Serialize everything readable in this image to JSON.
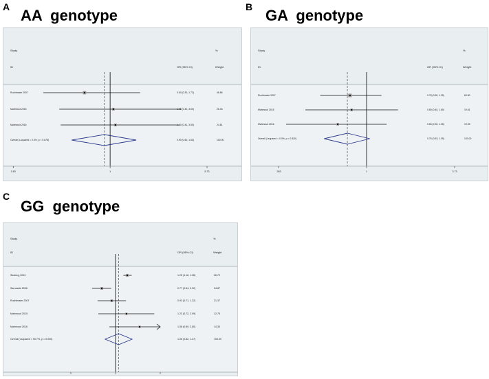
{
  "panels": [
    {
      "letter": "A",
      "title": "AA  genotype",
      "header": {
        "study": "Study",
        "id": "ID",
        "or": "OR (95% CI)",
        "pct": "%",
        "weight": "Weight"
      },
      "x_ticks": [
        "0.83",
        "1",
        "5.73"
      ]
    },
    {
      "letter": "B",
      "title": "GA  genotype",
      "header": {
        "study": "Study",
        "id": "ID",
        "or": "OR (95% CI)",
        "pct": "%",
        "weight": "Weight"
      },
      "x_ticks": [
        ".283",
        "1",
        "3.73"
      ]
    },
    {
      "letter": "C",
      "title": "GG  genotype",
      "header": {
        "study": "Study",
        "id": "ID",
        "or": "OR (95% CI)",
        "pct": "%",
        "weight": "Weight"
      },
      "x_ticks": [
        ".384",
        "1",
        "2.34"
      ],
      "note": "NOTE: Weights are from random effects analysis"
    }
  ],
  "chart_data": [
    {
      "type": "forest",
      "title": "AA  genotype",
      "xlim": [
        0.174,
        5.73
      ],
      "x_scale": "log",
      "null_line": 1,
      "pooled_line": 0.9,
      "studies": [
        {
          "label": "Ruchtmaier 2007",
          "or": 0.63,
          "lo": 0.3,
          "hi": 1.72,
          "ci_text": "0.63 (0.30, 1.72)",
          "weight": "48.86"
        },
        {
          "label": "Mahmoud 2015",
          "or": 1.06,
          "lo": 0.4,
          "hi": 3.6,
          "ci_text": "1.06 (0.40, 3.60)",
          "weight": "26.33"
        },
        {
          "label": "Mahmoud 2016",
          "or": 1.1,
          "lo": 0.41,
          "hi": 3.5,
          "ci_text": "1.10 (0.41, 3.50)",
          "weight": "24.81"
        }
      ],
      "overall": {
        "label": "Overall  (I-squared = 0.0%, p = 0.878)",
        "or": 0.9,
        "lo": 0.5,
        "hi": 1.6,
        "ci_text": "0.90 (0.50, 1.60)",
        "weight": "100.00"
      }
    },
    {
      "type": "forest",
      "title": "GA  genotype",
      "xlim": [
        0.268,
        3.73
      ],
      "x_scale": "log",
      "null_line": 1,
      "pooled_line": 0.75,
      "studies": [
        {
          "label": "Ruchtmaier 2007",
          "or": 0.78,
          "lo": 0.5,
          "hi": 1.25,
          "ci_text": "0.78 (0.50, 1.25)",
          "weight": "60.80"
        },
        {
          "label": "Mahmoud 2015",
          "or": 0.8,
          "lo": 0.4,
          "hi": 1.6,
          "ci_text": "0.80 (0.40, 1.60)",
          "weight": "19.61"
        },
        {
          "label": "Mahmoud 2016",
          "or": 0.65,
          "lo": 0.3,
          "hi": 1.35,
          "ci_text": "0.65 (0.30, 1.35)",
          "weight": "19.59"
        }
      ],
      "overall": {
        "label": "Overall  (I-squared = 0.0%, p = 0.820)",
        "or": 0.75,
        "lo": 0.53,
        "hi": 1.05,
        "ci_text": "0.75 (0.53, 1.05)",
        "weight": "100.00"
      }
    },
    {
      "type": "forest",
      "title": "GG  genotype",
      "xlim": [
        0.19,
        2.34
      ],
      "x_scale": "log",
      "null_line": 1,
      "pooled_line": 1.06,
      "studies": [
        {
          "label": "Skoberg 2004",
          "or": 1.25,
          "lo": 1.16,
          "hi": 1.36,
          "ci_text": "1.25 (1.16, 1.36)",
          "weight": "26.72"
        },
        {
          "label": "Sarrowski 2006",
          "or": 0.77,
          "lo": 0.64,
          "hi": 0.92,
          "ci_text": "0.77 (0.64, 0.92)",
          "weight": "24.87"
        },
        {
          "label": "Ruchtmaier 2007",
          "or": 0.93,
          "lo": 0.71,
          "hi": 1.22,
          "ci_text": "0.93 (0.71, 1.22)",
          "weight": "21.37"
        },
        {
          "label": "Mahmoud 2015",
          "or": 1.23,
          "lo": 0.72,
          "hi": 2.09,
          "ci_text": "1.23 (0.72, 2.09)",
          "weight": "12.75"
        },
        {
          "label": "Mahmoud 2016",
          "or": 1.58,
          "lo": 0.89,
          "hi": 2.8,
          "ci_text": "1.58 (0.89, 2.80)",
          "weight": "14.30"
        }
      ],
      "overall": {
        "label": "Overall  (I-squared = 90.7%, p = 0.000)",
        "or": 1.06,
        "lo": 0.82,
        "hi": 1.37,
        "ci_text": "1.06 (0.82, 1.37)",
        "weight": "100.00"
      }
    }
  ]
}
